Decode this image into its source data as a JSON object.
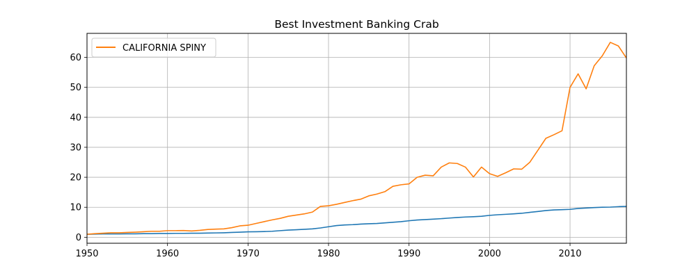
{
  "chart_data": {
    "type": "line",
    "title": "Best Investment Banking Crab",
    "xlabel": "",
    "ylabel": "",
    "xlim": [
      1950,
      2017
    ],
    "ylim": [
      -2,
      68
    ],
    "xticks": [
      1950,
      1960,
      1970,
      1980,
      1990,
      2000,
      2010
    ],
    "yticks": [
      0,
      10,
      20,
      30,
      40,
      50,
      60
    ],
    "grid": true,
    "legend_position": "top-left",
    "x": [
      1950,
      1951,
      1952,
      1953,
      1954,
      1955,
      1956,
      1957,
      1958,
      1959,
      1960,
      1961,
      1962,
      1963,
      1964,
      1965,
      1966,
      1967,
      1968,
      1969,
      1970,
      1971,
      1972,
      1973,
      1974,
      1975,
      1976,
      1977,
      1978,
      1979,
      1980,
      1981,
      1982,
      1983,
      1984,
      1985,
      1986,
      1987,
      1988,
      1989,
      1990,
      1991,
      1992,
      1993,
      1994,
      1995,
      1996,
      1997,
      1998,
      1999,
      2000,
      2001,
      2002,
      2003,
      2004,
      2005,
      2006,
      2007,
      2008,
      2009,
      2010,
      2011,
      2012,
      2013,
      2014,
      2015,
      2016,
      2017
    ],
    "series": [
      {
        "name": "",
        "color": "#1f77b4",
        "values": [
          1.0,
          1.05,
          1.1,
          1.1,
          1.1,
          1.15,
          1.15,
          1.2,
          1.2,
          1.25,
          1.25,
          1.3,
          1.3,
          1.35,
          1.35,
          1.4,
          1.45,
          1.5,
          1.6,
          1.7,
          1.8,
          1.85,
          1.9,
          2.0,
          2.2,
          2.4,
          2.5,
          2.65,
          2.8,
          3.1,
          3.5,
          3.9,
          4.1,
          4.2,
          4.4,
          4.5,
          4.6,
          4.8,
          5.0,
          5.2,
          5.5,
          5.75,
          5.9,
          6.05,
          6.2,
          6.4,
          6.6,
          6.75,
          6.85,
          7.0,
          7.3,
          7.5,
          7.65,
          7.8,
          8.0,
          8.3,
          8.6,
          8.9,
          9.1,
          9.2,
          9.3,
          9.6,
          9.75,
          9.9,
          10.0,
          10.05,
          10.2,
          10.3
        ]
      },
      {
        "name": "CALIFORNIA SPINY",
        "color": "#ff7f0e",
        "values": [
          1.0,
          1.2,
          1.35,
          1.5,
          1.5,
          1.6,
          1.7,
          1.85,
          2.0,
          2.0,
          2.2,
          2.2,
          2.25,
          2.1,
          2.3,
          2.6,
          2.7,
          2.8,
          3.2,
          3.8,
          4.0,
          4.6,
          5.2,
          5.8,
          6.3,
          7.0,
          7.4,
          7.8,
          8.4,
          10.3,
          10.5,
          11.0,
          11.6,
          12.2,
          12.7,
          13.8,
          14.4,
          15.2,
          17.0,
          17.5,
          17.8,
          20.0,
          20.7,
          20.5,
          23.4,
          24.8,
          24.6,
          23.4,
          20.1,
          23.4,
          21.2,
          20.3,
          21.5,
          22.8,
          22.7,
          25.0,
          29.0,
          33.0,
          34.2,
          35.5,
          50.0,
          54.5,
          49.5,
          57.2,
          60.5,
          65.0,
          63.8,
          59.8
        ]
      }
    ]
  }
}
